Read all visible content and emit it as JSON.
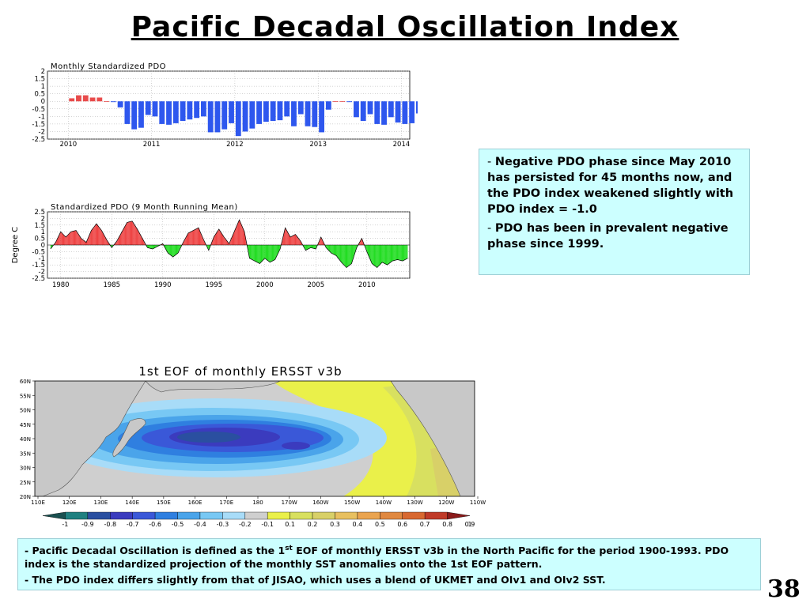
{
  "slide": {
    "title": "Pacific Decadal Oscillation Index",
    "page_number": "38"
  },
  "info_box": {
    "bullets": [
      "Negative PDO phase since May 2010 has persisted for 45 months now, and the PDO index weakened slightly with PDO index  = -1.0",
      "PDO has been in prevalent negative phase since 1999."
    ]
  },
  "note_box": {
    "line1_pre": "Pacific Decadal Oscillation is defined as the 1",
    "line1_sup": "st",
    "line1_post": " EOF of monthly ERSST v3b in the North Pacific for the period 1900-1993. PDO index is the standardized projection of the monthly SST anomalies onto  the 1st EOF pattern.",
    "line2": "The PDO index differs slightly from that of JISAO, which uses a blend of UKMET and OIv1 and OIv2 SST."
  },
  "colors": {
    "positive_bar": "#e84b4b",
    "negative_bar": "#2e57ee",
    "positive_fill": "#ee4444",
    "negative_fill": "#22dd22",
    "info_bg": "#ccffff"
  },
  "chart_data": [
    {
      "type": "bar",
      "title": "Monthly Standardized PDO",
      "x_ticks": [
        "2010",
        "2011",
        "2012",
        "2013",
        "2014"
      ],
      "ylim": [
        -2.5,
        2
      ],
      "y_ticks": [
        "2",
        "1.5",
        "1",
        "0.5",
        "0",
        "-0.5",
        "-1",
        "-1.5",
        "-2",
        "-2.5"
      ],
      "grid": true,
      "x_start": 2010.0,
      "values": [
        0.2,
        0.4,
        0.4,
        0.25,
        0.25,
        0,
        -0.05,
        -0.4,
        -1.5,
        -1.85,
        -1.75,
        -0.9,
        -1.0,
        -1.5,
        -1.55,
        -1.45,
        -1.3,
        -1.2,
        -1.1,
        -1.0,
        -2.05,
        -2.05,
        -1.85,
        -1.45,
        -2.3,
        -2.0,
        -1.8,
        -1.5,
        -1.35,
        -1.3,
        -1.25,
        -1.0,
        -1.65,
        -0.85,
        -1.65,
        -1.7,
        -2.05,
        -0.55,
        0,
        0,
        -0.05,
        -1.05,
        -1.3,
        -0.85,
        -1.5,
        -1.55,
        -1.05,
        -1.4,
        -1.5,
        -1.45,
        -0.8,
        -1.15,
        -1.2,
        -1.2,
        -1.0
      ]
    },
    {
      "type": "area",
      "title": "Standardized PDO (9 Month Running Mean)",
      "ylabel": "Degree C",
      "x_ticks": [
        "1980",
        "1985",
        "1990",
        "1995",
        "2000",
        "2005",
        "2010"
      ],
      "ylim": [
        -2.5,
        2.5
      ],
      "y_ticks": [
        "2.5",
        "2",
        "1.5",
        "1",
        "0.5",
        "0",
        "-0.5",
        "-1",
        "-1.5",
        "-2",
        "-2.5"
      ],
      "grid": true,
      "x": [
        1979.0,
        1979.5,
        1980.0,
        1980.5,
        1981.0,
        1981.5,
        1982.0,
        1982.5,
        1983.0,
        1983.5,
        1984.0,
        1984.5,
        1985.0,
        1985.5,
        1986.0,
        1986.5,
        1987.0,
        1987.5,
        1988.0,
        1988.5,
        1989.0,
        1989.5,
        1990.0,
        1990.5,
        1991.0,
        1991.5,
        1992.0,
        1992.5,
        1993.0,
        1993.5,
        1994.0,
        1994.5,
        1995.0,
        1995.5,
        1996.0,
        1996.5,
        1997.0,
        1997.5,
        1998.0,
        1998.5,
        1999.0,
        1999.5,
        2000.0,
        2000.5,
        2001.0,
        2001.5,
        2002.0,
        2002.5,
        2003.0,
        2003.5,
        2004.0,
        2004.5,
        2005.0,
        2005.5,
        2006.0,
        2006.5,
        2007.0,
        2007.5,
        2008.0,
        2008.5,
        2009.0,
        2009.5,
        2010.0,
        2010.5,
        2011.0,
        2011.5,
        2012.0,
        2012.5,
        2013.0,
        2013.5,
        2014.0
      ],
      "values": [
        -0.3,
        0.2,
        1.0,
        0.6,
        1.0,
        1.1,
        0.5,
        0.2,
        1.1,
        1.6,
        1.1,
        0.4,
        -0.2,
        0.3,
        1.0,
        1.7,
        1.8,
        1.2,
        0.5,
        -0.2,
        -0.3,
        -0.1,
        0.1,
        -0.6,
        -0.9,
        -0.6,
        0.2,
        0.9,
        1.1,
        1.3,
        0.4,
        -0.4,
        0.6,
        1.2,
        0.6,
        0.1,
        1.0,
        1.9,
        1.0,
        -1.0,
        -1.2,
        -1.4,
        -1.0,
        -1.3,
        -1.1,
        -0.3,
        1.3,
        0.6,
        0.8,
        0.3,
        -0.4,
        -0.2,
        -0.3,
        0.6,
        -0.2,
        -0.6,
        -0.8,
        -1.3,
        -1.7,
        -1.4,
        -0.2,
        0.5,
        -0.5,
        -1.4,
        -1.7,
        -1.3,
        -1.5,
        -1.2,
        -1.1,
        -1.2,
        -1.0
      ]
    },
    {
      "type": "heatmap",
      "title": "1st EOF of monthly ERSST v3b",
      "lon_ticks": [
        "110E",
        "120E",
        "130E",
        "140E",
        "150E",
        "160E",
        "170E",
        "180",
        "170W",
        "160W",
        "150W",
        "140W",
        "130W",
        "120W",
        "110W"
      ],
      "lat_ticks": [
        "60N",
        "55N",
        "50N",
        "45N",
        "40N",
        "35N",
        "30N",
        "25N",
        "20N"
      ],
      "colorbar_labels": [
        "-1",
        "-0.9",
        "-0.8",
        "-0.7",
        "-0.6",
        "-0.5",
        "-0.4",
        "-0.3",
        "-0.2",
        "-0.1",
        "0.1",
        "0.2",
        "0.3",
        "0.4",
        "0.5",
        "0.6",
        "0.7",
        "0.8",
        "0.9",
        "1"
      ],
      "colorbar_colors": [
        "#1a5050",
        "#1f8080",
        "#2a4fa0",
        "#3b3bbe",
        "#3a58d8",
        "#2f7fe0",
        "#4aa4ea",
        "#78c8f4",
        "#a8dcf8",
        "#cfcfcf",
        "#eaf04a",
        "#d8e060",
        "#d8d068",
        "#e8c060",
        "#eaa450",
        "#e08840",
        "#d86830",
        "#c03a28",
        "#8a1a1a"
      ]
    }
  ]
}
